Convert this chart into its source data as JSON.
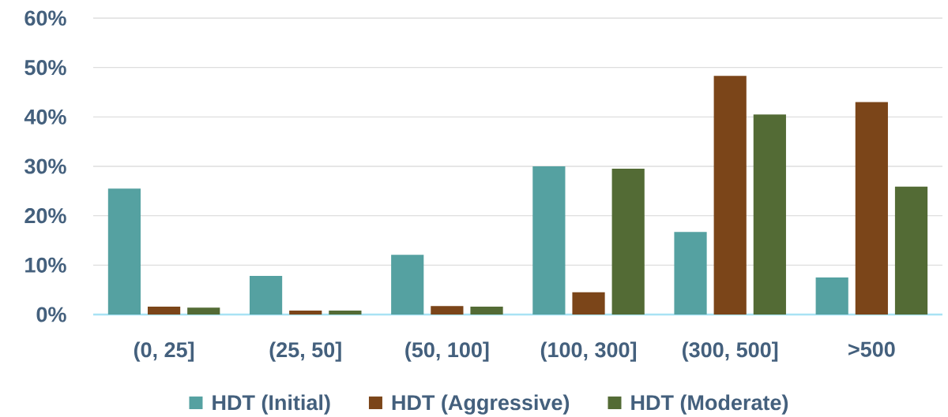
{
  "chart_data": {
    "type": "bar",
    "categories": [
      "(0, 25]",
      "(25, 50]",
      "(50, 100]",
      "(100, 300]",
      "(300, 500]",
      ">500"
    ],
    "series": [
      {
        "name": "HDT (Initial)",
        "color": "#55a1a1",
        "values": [
          25.5,
          7.8,
          12.1,
          30.0,
          16.7,
          7.5
        ]
      },
      {
        "name": "HDT (Aggressive)",
        "color": "#7b4519",
        "values": [
          1.6,
          0.8,
          1.7,
          4.5,
          48.3,
          43.0
        ]
      },
      {
        "name": "HDT (Moderate)",
        "color": "#536b35",
        "values": [
          1.4,
          0.8,
          1.6,
          29.5,
          40.5,
          25.9
        ]
      }
    ],
    "ylim": [
      0,
      60
    ],
    "yticks": [
      {
        "value": 0,
        "label": "0%"
      },
      {
        "value": 10,
        "label": "10%"
      },
      {
        "value": 20,
        "label": "20%"
      },
      {
        "value": 30,
        "label": "30%"
      },
      {
        "value": 40,
        "label": "40%"
      },
      {
        "value": 50,
        "label": "50%"
      },
      {
        "value": 60,
        "label": "60%"
      }
    ],
    "grid": "y",
    "legend": "bottom"
  }
}
